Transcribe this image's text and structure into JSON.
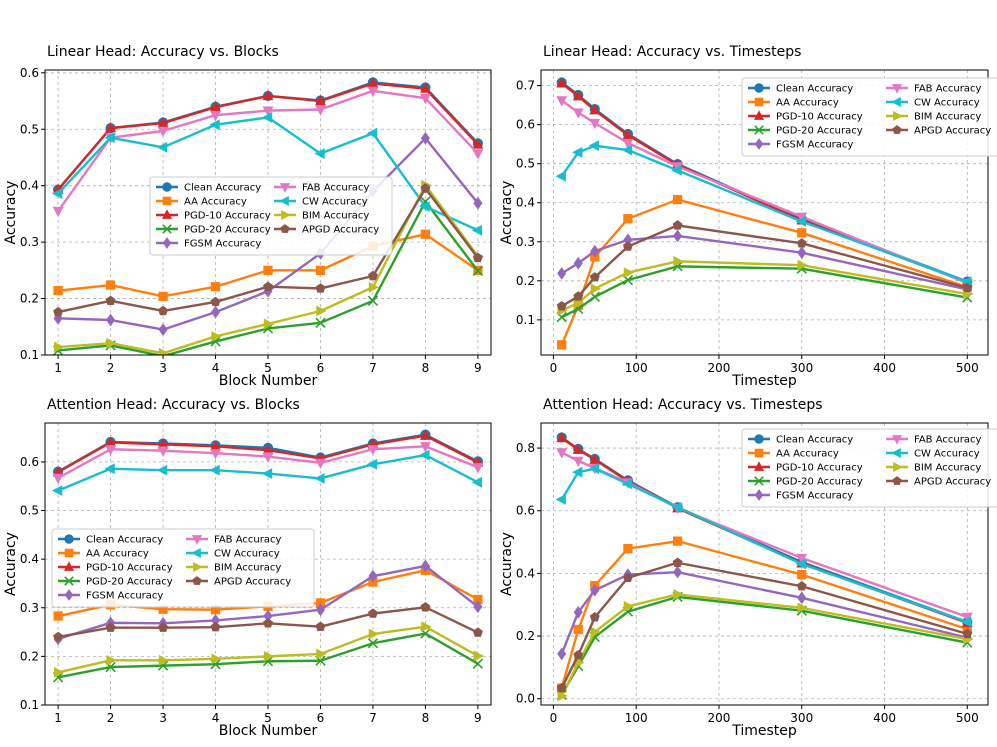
{
  "colors": {
    "Clean Accuracy": "#1f77b4",
    "AA Accuracy": "#ff7f0e",
    "PGD-10 Accuracy": "#d62728",
    "PGD-20 Accuracy": "#2ca02c",
    "FGSM Accuracy": "#9467bd",
    "FAB Accuracy": "#e377c2",
    "CW Accuracy": "#17becf",
    "BIM Accuracy": "#bcbd22",
    "APGD Accuracy": "#8c564b"
  },
  "markers": {
    "Clean Accuracy": "circle",
    "AA Accuracy": "square",
    "PGD-10 Accuracy": "triangle-up",
    "PGD-20 Accuracy": "x",
    "FGSM Accuracy": "diamond",
    "FAB Accuracy": "triangle-down",
    "CW Accuracy": "triangle-left",
    "BIM Accuracy": "triangle-right",
    "APGD Accuracy": "pentagon"
  },
  "chart_data": [
    {
      "type": "line",
      "title": "Linear Head: Accuracy vs. Blocks",
      "xlabel": "Block Number",
      "ylabel": "Accuracy",
      "xlim": [
        0.75,
        9.25
      ],
      "ylim": [
        0.1,
        0.605
      ],
      "xticks": [
        1,
        2,
        3,
        4,
        5,
        6,
        7,
        8,
        9
      ],
      "yticks": [
        0.1,
        0.2,
        0.3,
        0.4,
        0.5,
        0.6
      ],
      "ytick_labels": [
        "0.1",
        "0.2",
        "0.3",
        "0.4",
        "0.5",
        "0.6"
      ],
      "legend_loc": "center",
      "x": [
        1,
        2,
        3,
        4,
        5,
        6,
        7,
        8,
        9
      ],
      "series": [
        {
          "name": "Clean Accuracy",
          "values": [
            0.393,
            0.502,
            0.512,
            0.54,
            0.559,
            0.551,
            0.583,
            0.574,
            0.475
          ]
        },
        {
          "name": "AA Accuracy",
          "values": [
            0.214,
            0.224,
            0.204,
            0.221,
            0.25,
            0.25,
            0.293,
            0.314,
            0.25
          ]
        },
        {
          "name": "PGD-10 Accuracy",
          "values": [
            0.393,
            0.502,
            0.511,
            0.539,
            0.559,
            0.55,
            0.581,
            0.572,
            0.473
          ]
        },
        {
          "name": "PGD-20 Accuracy",
          "values": [
            0.108,
            0.117,
            0.098,
            0.124,
            0.147,
            0.157,
            0.196,
            0.372,
            0.249
          ]
        },
        {
          "name": "FGSM Accuracy",
          "values": [
            0.165,
            0.162,
            0.145,
            0.176,
            0.213,
            0.28,
            0.39,
            0.484,
            0.369
          ]
        },
        {
          "name": "FAB Accuracy",
          "values": [
            0.355,
            0.485,
            0.497,
            0.525,
            0.533,
            0.535,
            0.568,
            0.555,
            0.457
          ]
        },
        {
          "name": "CW Accuracy",
          "values": [
            0.386,
            0.485,
            0.468,
            0.508,
            0.521,
            0.457,
            0.493,
            0.363,
            0.321
          ]
        },
        {
          "name": "BIM Accuracy",
          "values": [
            0.114,
            0.121,
            0.103,
            0.133,
            0.155,
            0.178,
            0.22,
            0.401,
            0.275
          ]
        },
        {
          "name": "APGD Accuracy",
          "values": [
            0.176,
            0.196,
            0.178,
            0.194,
            0.221,
            0.218,
            0.24,
            0.395,
            0.272
          ]
        }
      ]
    },
    {
      "type": "line",
      "title": "Linear Head: Accuracy vs. Timesteps",
      "xlabel": "Timestep",
      "ylabel": "Accuracy",
      "xlim": [
        -15,
        525
      ],
      "ylim": [
        0.01,
        0.74
      ],
      "xticks": [
        0,
        100,
        200,
        300,
        400,
        500
      ],
      "yticks": [
        0.1,
        0.2,
        0.3,
        0.4,
        0.5,
        0.6,
        0.7
      ],
      "ytick_labels": [
        "0.1",
        "0.2",
        "0.3",
        "0.4",
        "0.5",
        "0.6",
        "0.7"
      ],
      "legend_loc": "upper right",
      "x": [
        10,
        30,
        50,
        90,
        150,
        300,
        500
      ],
      "series": [
        {
          "name": "Clean Accuracy",
          "values": [
            0.708,
            0.676,
            0.64,
            0.576,
            0.499,
            0.358,
            0.198
          ]
        },
        {
          "name": "AA Accuracy",
          "values": [
            0.036,
            0.137,
            0.261,
            0.359,
            0.408,
            0.323,
            0.184
          ]
        },
        {
          "name": "PGD-10 Accuracy",
          "values": [
            0.706,
            0.673,
            0.637,
            0.573,
            0.497,
            0.355,
            0.196
          ]
        },
        {
          "name": "PGD-20 Accuracy",
          "values": [
            0.107,
            0.128,
            0.159,
            0.202,
            0.237,
            0.231,
            0.157
          ]
        },
        {
          "name": "FGSM Accuracy",
          "values": [
            0.219,
            0.245,
            0.276,
            0.305,
            0.315,
            0.272,
            0.178
          ]
        },
        {
          "name": "FAB Accuracy",
          "values": [
            0.662,
            0.631,
            0.604,
            0.553,
            0.493,
            0.364,
            0.194
          ]
        },
        {
          "name": "CW Accuracy",
          "values": [
            0.468,
            0.529,
            0.546,
            0.535,
            0.483,
            0.352,
            0.198
          ]
        },
        {
          "name": "BIM Accuracy",
          "values": [
            0.124,
            0.143,
            0.18,
            0.221,
            0.25,
            0.24,
            0.166
          ]
        },
        {
          "name": "APGD Accuracy",
          "values": [
            0.135,
            0.16,
            0.209,
            0.288,
            0.342,
            0.296,
            0.182
          ]
        }
      ]
    },
    {
      "type": "line",
      "title": "Attention Head: Accuracy vs. Blocks",
      "xlabel": "Block Number",
      "ylabel": "Accuracy",
      "xlim": [
        0.75,
        9.25
      ],
      "ylim": [
        0.1,
        0.68
      ],
      "xticks": [
        1,
        2,
        3,
        4,
        5,
        6,
        7,
        8,
        9
      ],
      "yticks": [
        0.1,
        0.2,
        0.3,
        0.4,
        0.5,
        0.6
      ],
      "ytick_labels": [
        "0.1",
        "0.2",
        "0.3",
        "0.4",
        "0.5",
        "0.6"
      ],
      "legend_loc": "center-left",
      "x": [
        1,
        2,
        3,
        4,
        5,
        6,
        7,
        8,
        9
      ],
      "series": [
        {
          "name": "Clean Accuracy",
          "values": [
            0.58,
            0.641,
            0.638,
            0.634,
            0.629,
            0.609,
            0.638,
            0.656,
            0.601
          ]
        },
        {
          "name": "AA Accuracy",
          "values": [
            0.283,
            0.306,
            0.297,
            0.296,
            0.303,
            0.31,
            0.353,
            0.377,
            0.317
          ]
        },
        {
          "name": "PGD-10 Accuracy",
          "values": [
            0.579,
            0.64,
            0.636,
            0.632,
            0.624,
            0.607,
            0.636,
            0.654,
            0.599
          ]
        },
        {
          "name": "PGD-20 Accuracy",
          "values": [
            0.157,
            0.178,
            0.181,
            0.184,
            0.19,
            0.191,
            0.227,
            0.247,
            0.185
          ]
        },
        {
          "name": "FGSM Accuracy",
          "values": [
            0.236,
            0.269,
            0.268,
            0.274,
            0.283,
            0.296,
            0.365,
            0.386,
            0.302
          ]
        },
        {
          "name": "FAB Accuracy",
          "values": [
            0.567,
            0.626,
            0.623,
            0.618,
            0.611,
            0.598,
            0.626,
            0.632,
            0.589
          ]
        },
        {
          "name": "CW Accuracy",
          "values": [
            0.541,
            0.586,
            0.583,
            0.583,
            0.576,
            0.566,
            0.595,
            0.614,
            0.558
          ]
        },
        {
          "name": "BIM Accuracy",
          "values": [
            0.167,
            0.192,
            0.192,
            0.195,
            0.2,
            0.205,
            0.246,
            0.261,
            0.201
          ]
        },
        {
          "name": "APGD Accuracy",
          "values": [
            0.24,
            0.259,
            0.259,
            0.26,
            0.268,
            0.261,
            0.288,
            0.301,
            0.249
          ]
        }
      ]
    },
    {
      "type": "line",
      "title": "Attention Head: Accuracy vs. Timesteps",
      "xlabel": "Timestep",
      "ylabel": "Accuracy",
      "xlim": [
        -15,
        525
      ],
      "ylim": [
        -0.02,
        0.88
      ],
      "xticks": [
        0,
        100,
        200,
        300,
        400,
        500
      ],
      "yticks": [
        0.0,
        0.2,
        0.4,
        0.6,
        0.8
      ],
      "ytick_labels": [
        "0.0",
        "0.2",
        "0.4",
        "0.6",
        "0.8"
      ],
      "legend_loc": "upper right",
      "x": [
        10,
        30,
        50,
        90,
        150,
        300,
        500
      ],
      "series": [
        {
          "name": "Clean Accuracy",
          "values": [
            0.834,
            0.797,
            0.765,
            0.697,
            0.611,
            0.436,
            0.245
          ]
        },
        {
          "name": "AA Accuracy",
          "values": [
            0.034,
            0.221,
            0.361,
            0.479,
            0.503,
            0.396,
            0.222
          ]
        },
        {
          "name": "PGD-10 Accuracy",
          "values": [
            0.832,
            0.795,
            0.763,
            0.694,
            0.608,
            0.432,
            0.242
          ]
        },
        {
          "name": "PGD-20 Accuracy",
          "values": [
            0.013,
            0.104,
            0.197,
            0.278,
            0.325,
            0.281,
            0.179
          ]
        },
        {
          "name": "FGSM Accuracy",
          "values": [
            0.143,
            0.276,
            0.346,
            0.396,
            0.404,
            0.322,
            0.195
          ]
        },
        {
          "name": "FAB Accuracy",
          "values": [
            0.786,
            0.759,
            0.736,
            0.69,
            0.609,
            0.449,
            0.261
          ]
        },
        {
          "name": "CW Accuracy",
          "values": [
            0.636,
            0.723,
            0.734,
            0.686,
            0.611,
            0.43,
            0.245
          ]
        },
        {
          "name": "BIM Accuracy",
          "values": [
            0.009,
            0.115,
            0.213,
            0.295,
            0.333,
            0.29,
            0.19
          ]
        },
        {
          "name": "APGD Accuracy",
          "values": [
            0.034,
            0.139,
            0.26,
            0.386,
            0.434,
            0.359,
            0.207
          ]
        }
      ]
    }
  ]
}
